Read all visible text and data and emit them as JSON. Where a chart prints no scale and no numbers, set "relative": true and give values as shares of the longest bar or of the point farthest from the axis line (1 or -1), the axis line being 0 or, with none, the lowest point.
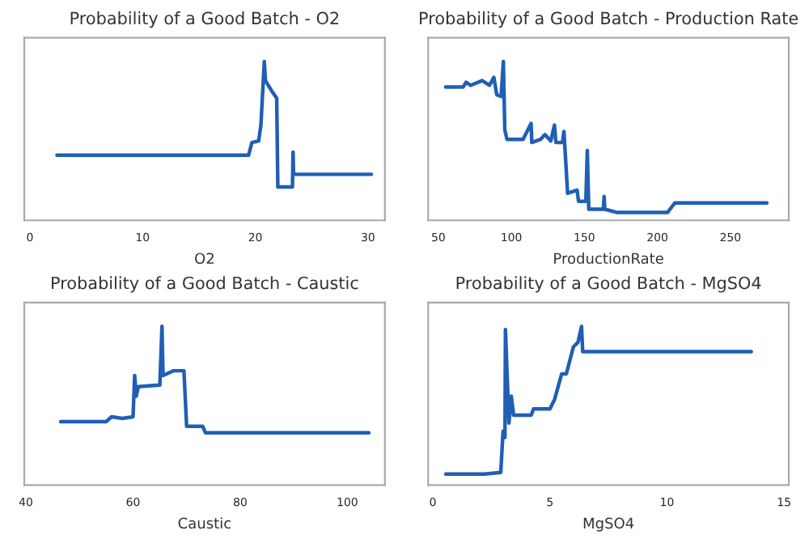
{
  "chart_data": [
    {
      "type": "line",
      "title": "Probability of a Good Batch - O2",
      "xlabel": "O2",
      "relative": true,
      "xlim": [
        -0.5,
        31.5
      ],
      "xticks": [
        0,
        10,
        20,
        30
      ],
      "tick_labels": "x",
      "grid": false,
      "series": [
        {
          "color": "#1f5fb4",
          "x": [
            2.4,
            19.4,
            19.7,
            20.3,
            20.5,
            20.8,
            20.9,
            21.5,
            21.9,
            22.0,
            23.3,
            23.35,
            23.4,
            30.3
          ],
          "values": [
            0.41,
            0.41,
            0.49,
            0.5,
            0.6,
            1.0,
            0.88,
            0.81,
            0.77,
            0.21,
            0.21,
            0.43,
            0.29,
            0.29
          ]
        }
      ]
    },
    {
      "type": "line",
      "title": "Probability of a Good Batch - Production Rate",
      "xlabel": "ProductionRate",
      "relative": true,
      "xlim": [
        43,
        290
      ],
      "xticks": [
        50,
        100,
        150,
        200,
        250
      ],
      "tick_labels": "x",
      "grid": false,
      "series": [
        {
          "color": "#1f5fb4",
          "x": [
            55,
            67,
            69,
            72,
            80,
            85,
            88,
            90,
            93,
            94.5,
            95.5,
            97,
            108,
            113.5,
            114,
            120,
            123,
            127,
            129.5,
            130.5,
            135,
            136,
            137.5,
            138.5,
            145,
            146,
            151,
            152,
            153,
            163,
            163.5,
            164,
            172,
            207,
            212,
            275
          ],
          "values": [
            0.84,
            0.84,
            0.87,
            0.85,
            0.88,
            0.85,
            0.9,
            0.79,
            0.78,
            1.0,
            0.57,
            0.51,
            0.51,
            0.61,
            0.49,
            0.51,
            0.54,
            0.5,
            0.6,
            0.49,
            0.49,
            0.56,
            0.33,
            0.17,
            0.19,
            0.12,
            0.12,
            0.44,
            0.07,
            0.07,
            0.15,
            0.07,
            0.05,
            0.05,
            0.11,
            0.11
          ]
        }
      ]
    },
    {
      "type": "line",
      "title": "Probability of a Good Batch - Caustic",
      "xlabel": "Caustic",
      "relative": true,
      "xlim": [
        39.7,
        107
      ],
      "xticks": [
        40,
        60,
        80,
        100
      ],
      "tick_labels": "x",
      "grid": false,
      "series": [
        {
          "color": "#1f5fb4",
          "x": [
            46.5,
            55,
            56,
            58,
            60,
            60.3,
            60.6,
            61,
            65,
            65.4,
            65.6,
            67.5,
            69.5,
            70,
            73,
            73.5,
            104
          ],
          "values": [
            0.4,
            0.4,
            0.43,
            0.42,
            0.43,
            0.69,
            0.56,
            0.62,
            0.63,
            1.0,
            0.69,
            0.72,
            0.72,
            0.37,
            0.37,
            0.33,
            0.33
          ]
        }
      ]
    },
    {
      "type": "line",
      "title": "Probability of a Good Batch - MgSO4",
      "xlabel": "MgSO4",
      "relative": true,
      "xlim": [
        -0.2,
        15.2
      ],
      "xticks": [
        0,
        5,
        10,
        15
      ],
      "tick_labels": "x",
      "grid": false,
      "series": [
        {
          "color": "#1f5fb4",
          "x": [
            0.55,
            2.2,
            2.9,
            3.0,
            3.08,
            3.1,
            3.25,
            3.35,
            3.45,
            4.2,
            4.3,
            5.0,
            5.2,
            5.5,
            5.7,
            6.0,
            6.2,
            6.35,
            6.4,
            13.6
          ],
          "values": [
            0.07,
            0.07,
            0.08,
            0.34,
            0.3,
            0.98,
            0.39,
            0.56,
            0.44,
            0.44,
            0.48,
            0.48,
            0.54,
            0.7,
            0.7,
            0.87,
            0.9,
            1.0,
            0.84,
            0.84
          ]
        }
      ]
    }
  ]
}
